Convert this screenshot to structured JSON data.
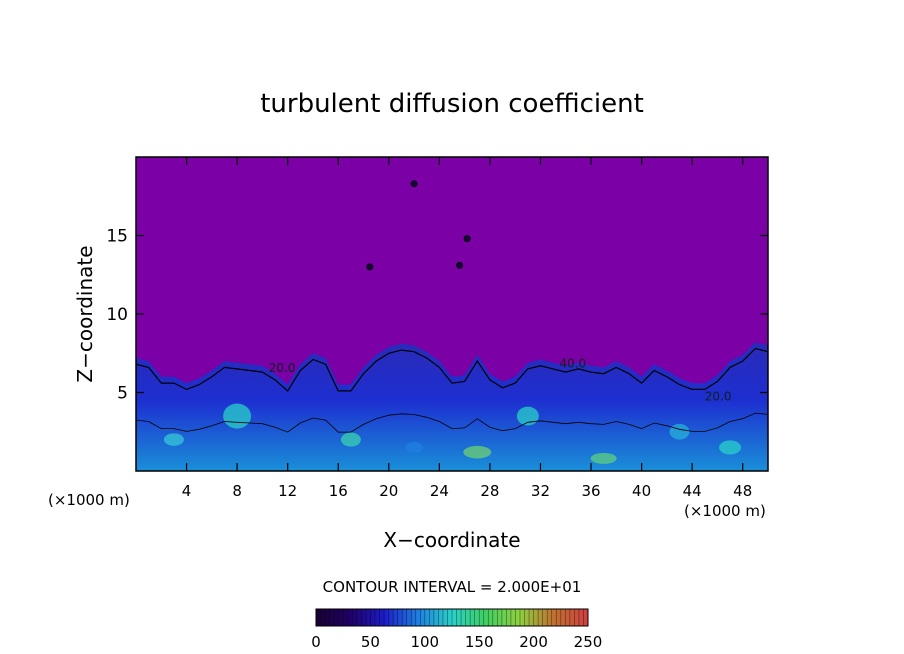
{
  "chart_data": {
    "type": "heatmap",
    "title": "turbulent diffusion coefficient",
    "xlabel": "X−coordinate",
    "ylabel": "Z−coordinate",
    "x_unit_left": "(×1000 m)",
    "x_unit_right": "(×1000 m)",
    "xlim": [
      0,
      50
    ],
    "ylim": [
      0,
      20
    ],
    "x_ticks": [
      4,
      8,
      12,
      16,
      20,
      24,
      28,
      32,
      36,
      40,
      44,
      48
    ],
    "y_ticks": [
      5,
      10,
      15
    ],
    "contour_interval_text": "CONTOUR INTERVAL = 2.000E+01",
    "contour_labels": [
      "20.0",
      "40.0",
      "20.0"
    ],
    "colorbar": {
      "min": 0,
      "max": 250,
      "ticks": [
        0,
        50,
        100,
        150,
        200,
        250
      ],
      "colors": [
        "#1a0033",
        "#200068",
        "#1c1cc8",
        "#1f7fe0",
        "#2ad0c8",
        "#40d060",
        "#8fcf40",
        "#c07030",
        "#d04040"
      ]
    },
    "background_color": "#7b00a6",
    "turbulent_layer_top": [
      [
        0,
        7.2
      ],
      [
        1,
        7.0
      ],
      [
        2,
        6.0
      ],
      [
        3,
        6.0
      ],
      [
        4,
        5.6
      ],
      [
        5,
        5.9
      ],
      [
        6,
        6.4
      ],
      [
        7,
        7.0
      ],
      [
        8,
        6.9
      ],
      [
        9,
        6.8
      ],
      [
        10,
        6.7
      ],
      [
        11,
        6.2
      ],
      [
        12,
        5.5
      ],
      [
        13,
        6.8
      ],
      [
        14,
        7.5
      ],
      [
        15,
        7.2
      ],
      [
        16,
        5.5
      ],
      [
        17,
        5.5
      ],
      [
        18,
        6.6
      ],
      [
        19,
        7.4
      ],
      [
        20,
        7.9
      ],
      [
        21,
        8.1
      ],
      [
        22,
        8.0
      ],
      [
        23,
        7.6
      ],
      [
        24,
        7.0
      ],
      [
        25,
        6.0
      ],
      [
        26,
        6.1
      ],
      [
        27,
        7.4
      ],
      [
        28,
        6.2
      ],
      [
        29,
        5.7
      ],
      [
        30,
        6.0
      ],
      [
        31,
        6.9
      ],
      [
        32,
        7.1
      ],
      [
        33,
        6.9
      ],
      [
        34,
        6.7
      ],
      [
        35,
        6.9
      ],
      [
        36,
        6.7
      ],
      [
        37,
        6.6
      ],
      [
        38,
        7.0
      ],
      [
        39,
        6.6
      ],
      [
        40,
        6.0
      ],
      [
        41,
        6.8
      ],
      [
        42,
        6.4
      ],
      [
        43,
        5.9
      ],
      [
        44,
        5.6
      ],
      [
        45,
        5.6
      ],
      [
        46,
        6.1
      ],
      [
        47,
        7.0
      ],
      [
        48,
        7.4
      ],
      [
        49,
        8.2
      ],
      [
        50,
        8.0
      ]
    ]
  }
}
